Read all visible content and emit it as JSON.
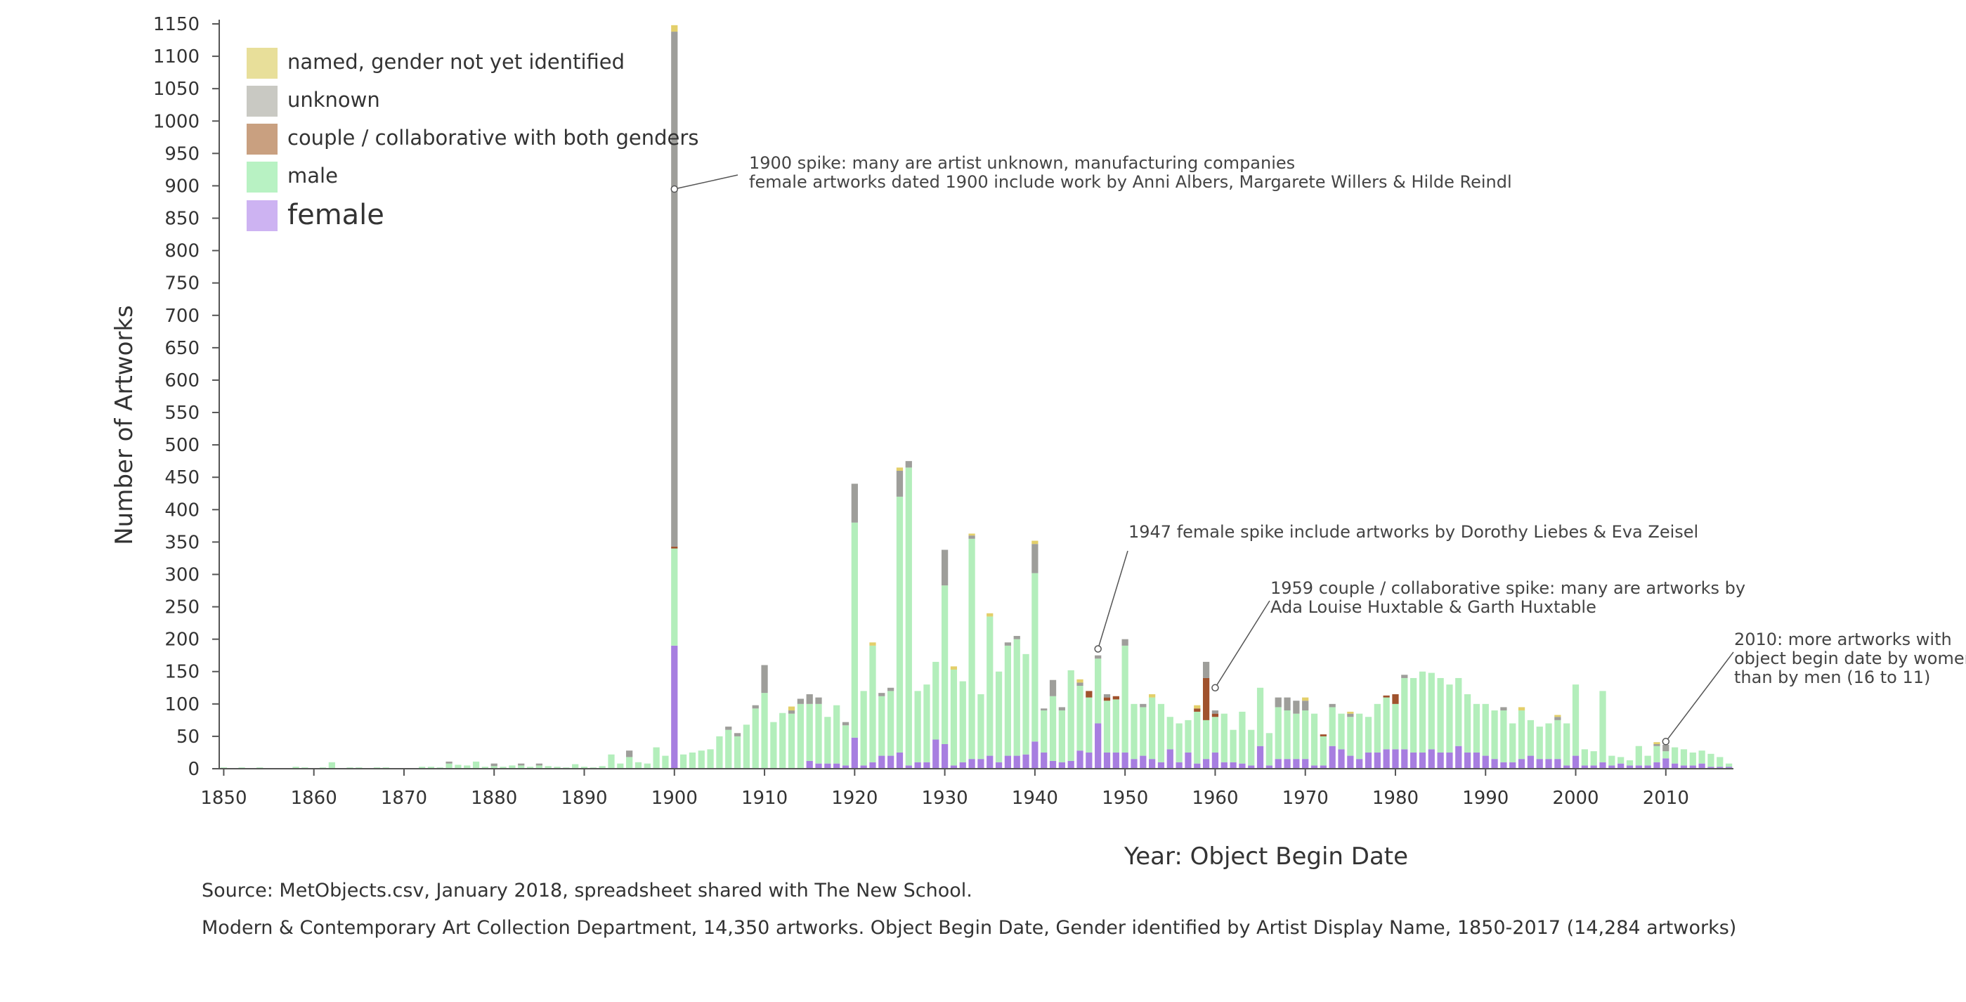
{
  "chart_data": {
    "type": "bar",
    "stacked": true,
    "xlabel": "Year: Object Begin Date",
    "ylabel": "Number of Artworks",
    "xlim": [
      1850,
      2017
    ],
    "ylim": [
      0,
      1150
    ],
    "x_ticks": [
      1850,
      1860,
      1870,
      1880,
      1890,
      1900,
      1910,
      1920,
      1930,
      1940,
      1950,
      1960,
      1970,
      1980,
      1990,
      2000,
      2010
    ],
    "y_ticks": [
      0,
      50,
      100,
      150,
      200,
      250,
      300,
      350,
      400,
      450,
      500,
      550,
      600,
      650,
      700,
      750,
      800,
      850,
      900,
      950,
      1000,
      1050,
      1100,
      1150
    ],
    "grid": false,
    "legend_position": "top-left",
    "legend": [
      {
        "key": "named",
        "label": "named, gender not yet identified",
        "color": "#e8df9a"
      },
      {
        "key": "unknown",
        "label": "unknown",
        "color": "#c9c9c3"
      },
      {
        "key": "couple",
        "label": "couple / collaborative with both genders",
        "color": "#c9a080"
      },
      {
        "key": "male",
        "label": "male",
        "color": "#b8f2c3"
      },
      {
        "key": "female",
        "label": "female",
        "color": "#cdb3f2"
      }
    ],
    "bar_colors": {
      "female": "#a77ee0",
      "male": "#b3eebb",
      "couple": "#a0522d",
      "unknown": "#9e9e9a",
      "named": "#e3cf6a"
    },
    "data": [
      [
        1850,
        0,
        2,
        0,
        0,
        0
      ],
      [
        1851,
        0,
        1,
        0,
        0,
        0
      ],
      [
        1852,
        0,
        2,
        0,
        0,
        0
      ],
      [
        1853,
        0,
        1,
        0,
        0,
        0
      ],
      [
        1854,
        0,
        2,
        0,
        0,
        0
      ],
      [
        1855,
        0,
        1,
        0,
        0,
        0
      ],
      [
        1856,
        0,
        1,
        0,
        0,
        0
      ],
      [
        1857,
        0,
        1,
        0,
        0,
        0
      ],
      [
        1858,
        0,
        3,
        0,
        0,
        0
      ],
      [
        1859,
        0,
        2,
        0,
        0,
        0
      ],
      [
        1860,
        0,
        1,
        0,
        0,
        0
      ],
      [
        1861,
        0,
        2,
        0,
        0,
        0
      ],
      [
        1862,
        0,
        10,
        0,
        0,
        0
      ],
      [
        1863,
        0,
        1,
        0,
        0,
        0
      ],
      [
        1864,
        0,
        2,
        0,
        0,
        0
      ],
      [
        1865,
        0,
        2,
        0,
        0,
        0
      ],
      [
        1866,
        0,
        1,
        0,
        0,
        0
      ],
      [
        1867,
        0,
        2,
        0,
        0,
        0
      ],
      [
        1868,
        0,
        2,
        0,
        0,
        0
      ],
      [
        1869,
        0,
        1,
        0,
        0,
        0
      ],
      [
        1870,
        0,
        1,
        0,
        0,
        0
      ],
      [
        1871,
        0,
        1,
        0,
        0,
        0
      ],
      [
        1872,
        0,
        3,
        0,
        0,
        0
      ],
      [
        1873,
        0,
        3,
        0,
        0,
        0
      ],
      [
        1874,
        0,
        2,
        0,
        0,
        0
      ],
      [
        1875,
        0,
        8,
        0,
        3,
        0
      ],
      [
        1876,
        0,
        6,
        0,
        0,
        0
      ],
      [
        1877,
        0,
        5,
        0,
        0,
        0
      ],
      [
        1878,
        0,
        11,
        0,
        0,
        0
      ],
      [
        1879,
        0,
        3,
        0,
        0,
        0
      ],
      [
        1880,
        0,
        4,
        0,
        4,
        0
      ],
      [
        1881,
        0,
        3,
        0,
        0,
        0
      ],
      [
        1882,
        0,
        5,
        0,
        0,
        0
      ],
      [
        1883,
        0,
        5,
        0,
        3,
        0
      ],
      [
        1884,
        0,
        3,
        0,
        0,
        0
      ],
      [
        1885,
        0,
        5,
        0,
        3,
        0
      ],
      [
        1886,
        0,
        4,
        0,
        0,
        0
      ],
      [
        1887,
        0,
        3,
        0,
        0,
        0
      ],
      [
        1888,
        0,
        2,
        0,
        0,
        0
      ],
      [
        1889,
        0,
        7,
        0,
        0,
        0
      ],
      [
        1890,
        0,
        3,
        0,
        0,
        0
      ],
      [
        1891,
        0,
        2,
        0,
        0,
        0
      ],
      [
        1892,
        0,
        4,
        0,
        0,
        0
      ],
      [
        1893,
        0,
        22,
        0,
        0,
        0
      ],
      [
        1894,
        0,
        8,
        0,
        0,
        0
      ],
      [
        1895,
        0,
        18,
        0,
        10,
        0
      ],
      [
        1896,
        0,
        10,
        0,
        0,
        0
      ],
      [
        1897,
        0,
        8,
        0,
        0,
        0
      ],
      [
        1898,
        0,
        33,
        0,
        0,
        0
      ],
      [
        1899,
        0,
        20,
        0,
        0,
        0
      ],
      [
        1900,
        190,
        150,
        3,
        795,
        10
      ],
      [
        1901,
        0,
        22,
        0,
        0,
        0
      ],
      [
        1902,
        0,
        25,
        0,
        0,
        0
      ],
      [
        1903,
        0,
        28,
        0,
        0,
        0
      ],
      [
        1904,
        0,
        30,
        0,
        0,
        0
      ],
      [
        1905,
        0,
        50,
        0,
        0,
        0
      ],
      [
        1906,
        0,
        60,
        0,
        5,
        0
      ],
      [
        1907,
        0,
        50,
        0,
        5,
        0
      ],
      [
        1908,
        0,
        68,
        0,
        0,
        0
      ],
      [
        1909,
        0,
        93,
        0,
        5,
        0
      ],
      [
        1910,
        0,
        117,
        0,
        43,
        0
      ],
      [
        1911,
        0,
        72,
        0,
        0,
        0
      ],
      [
        1912,
        0,
        86,
        0,
        0,
        0
      ],
      [
        1913,
        0,
        85,
        0,
        5,
        6
      ],
      [
        1914,
        0,
        100,
        0,
        8,
        0
      ],
      [
        1915,
        12,
        88,
        0,
        15,
        0
      ],
      [
        1916,
        8,
        92,
        0,
        10,
        0
      ],
      [
        1917,
        8,
        72,
        0,
        0,
        0
      ],
      [
        1918,
        8,
        90,
        0,
        0,
        0
      ],
      [
        1919,
        5,
        62,
        0,
        5,
        0
      ],
      [
        1920,
        48,
        332,
        0,
        60,
        0
      ],
      [
        1921,
        5,
        115,
        0,
        0,
        0
      ],
      [
        1922,
        10,
        180,
        0,
        0,
        5
      ],
      [
        1923,
        20,
        92,
        0,
        5,
        0
      ],
      [
        1924,
        20,
        100,
        0,
        5,
        0
      ],
      [
        1925,
        25,
        395,
        0,
        40,
        5
      ],
      [
        1926,
        5,
        460,
        0,
        10,
        0
      ],
      [
        1927,
        10,
        110,
        0,
        0,
        0
      ],
      [
        1928,
        10,
        120,
        0,
        0,
        0
      ],
      [
        1929,
        45,
        120,
        0,
        0,
        0
      ],
      [
        1930,
        38,
        245,
        0,
        55,
        0
      ],
      [
        1931,
        5,
        148,
        0,
        0,
        5
      ],
      [
        1932,
        10,
        125,
        0,
        0,
        0
      ],
      [
        1933,
        15,
        340,
        0,
        5,
        3
      ],
      [
        1934,
        15,
        100,
        0,
        0,
        0
      ],
      [
        1935,
        20,
        215,
        0,
        0,
        5
      ],
      [
        1936,
        10,
        140,
        0,
        0,
        0
      ],
      [
        1937,
        20,
        170,
        0,
        5,
        0
      ],
      [
        1938,
        20,
        180,
        0,
        5,
        0
      ],
      [
        1939,
        22,
        155,
        0,
        0,
        0
      ],
      [
        1940,
        42,
        260,
        0,
        45,
        5
      ],
      [
        1941,
        25,
        65,
        0,
        3,
        0
      ],
      [
        1942,
        12,
        100,
        0,
        25,
        0
      ],
      [
        1943,
        10,
        80,
        0,
        5,
        0
      ],
      [
        1944,
        12,
        140,
        0,
        0,
        0
      ],
      [
        1945,
        28,
        100,
        0,
        5,
        5
      ],
      [
        1946,
        25,
        85,
        10,
        0,
        0
      ],
      [
        1947,
        70,
        100,
        0,
        5,
        0
      ],
      [
        1948,
        25,
        80,
        5,
        5,
        0
      ],
      [
        1949,
        25,
        82,
        5,
        0,
        0
      ],
      [
        1950,
        25,
        165,
        0,
        10,
        0
      ],
      [
        1951,
        15,
        85,
        0,
        0,
        0
      ],
      [
        1952,
        20,
        75,
        0,
        5,
        0
      ],
      [
        1953,
        15,
        95,
        0,
        0,
        5
      ],
      [
        1954,
        10,
        90,
        0,
        0,
        0
      ],
      [
        1955,
        30,
        50,
        0,
        0,
        0
      ],
      [
        1956,
        10,
        60,
        0,
        0,
        0
      ],
      [
        1957,
        25,
        50,
        0,
        0,
        0
      ],
      [
        1958,
        8,
        80,
        5,
        0,
        5
      ],
      [
        1959,
        15,
        60,
        65,
        25,
        0
      ],
      [
        1960,
        25,
        55,
        5,
        5,
        0
      ],
      [
        1961,
        10,
        75,
        0,
        0,
        0
      ],
      [
        1962,
        10,
        50,
        0,
        0,
        0
      ],
      [
        1963,
        8,
        80,
        0,
        0,
        0
      ],
      [
        1964,
        5,
        55,
        0,
        0,
        0
      ],
      [
        1965,
        35,
        90,
        0,
        0,
        0
      ],
      [
        1966,
        5,
        50,
        0,
        0,
        0
      ],
      [
        1967,
        15,
        80,
        0,
        15,
        0
      ],
      [
        1968,
        15,
        75,
        0,
        20,
        0
      ],
      [
        1969,
        15,
        70,
        0,
        20,
        0
      ],
      [
        1970,
        15,
        75,
        0,
        15,
        5
      ],
      [
        1971,
        5,
        80,
        0,
        0,
        0
      ],
      [
        1972,
        5,
        45,
        3,
        0,
        0
      ],
      [
        1973,
        35,
        60,
        0,
        5,
        0
      ],
      [
        1974,
        30,
        55,
        0,
        0,
        0
      ],
      [
        1975,
        20,
        60,
        0,
        5,
        3
      ],
      [
        1976,
        15,
        70,
        0,
        0,
        0
      ],
      [
        1977,
        25,
        55,
        0,
        0,
        0
      ],
      [
        1978,
        25,
        75,
        0,
        0,
        0
      ],
      [
        1979,
        30,
        80,
        3,
        0,
        0
      ],
      [
        1980,
        30,
        70,
        15,
        0,
        0
      ],
      [
        1981,
        30,
        110,
        0,
        5,
        0
      ],
      [
        1982,
        25,
        115,
        0,
        0,
        0
      ],
      [
        1983,
        25,
        125,
        0,
        0,
        0
      ],
      [
        1984,
        30,
        118,
        0,
        0,
        0
      ],
      [
        1985,
        25,
        115,
        0,
        0,
        0
      ],
      [
        1986,
        25,
        105,
        0,
        0,
        0
      ],
      [
        1987,
        35,
        105,
        0,
        0,
        0
      ],
      [
        1988,
        25,
        90,
        0,
        0,
        0
      ],
      [
        1989,
        25,
        75,
        0,
        0,
        0
      ],
      [
        1990,
        20,
        80,
        0,
        0,
        0
      ],
      [
        1991,
        15,
        75,
        0,
        0,
        0
      ],
      [
        1992,
        10,
        80,
        0,
        5,
        0
      ],
      [
        1993,
        10,
        60,
        0,
        0,
        0
      ],
      [
        1994,
        15,
        75,
        0,
        0,
        5
      ],
      [
        1995,
        20,
        55,
        0,
        0,
        0
      ],
      [
        1996,
        15,
        50,
        0,
        0,
        0
      ],
      [
        1997,
        15,
        55,
        0,
        0,
        0
      ],
      [
        1998,
        15,
        60,
        0,
        5,
        3
      ],
      [
        1999,
        5,
        65,
        0,
        0,
        0
      ],
      [
        2000,
        20,
        110,
        0,
        0,
        0
      ],
      [
        2001,
        5,
        25,
        0,
        0,
        0
      ],
      [
        2002,
        5,
        22,
        0,
        0,
        0
      ],
      [
        2003,
        10,
        110,
        0,
        0,
        0
      ],
      [
        2004,
        5,
        15,
        0,
        0,
        0
      ],
      [
        2005,
        8,
        10,
        0,
        0,
        0
      ],
      [
        2006,
        5,
        8,
        0,
        0,
        0
      ],
      [
        2007,
        5,
        30,
        0,
        0,
        0
      ],
      [
        2008,
        5,
        15,
        0,
        0,
        0
      ],
      [
        2009,
        10,
        25,
        0,
        3,
        3
      ],
      [
        2010,
        16,
        11,
        0,
        10,
        0
      ],
      [
        2011,
        8,
        25,
        0,
        0,
        0
      ],
      [
        2012,
        5,
        25,
        0,
        0,
        0
      ],
      [
        2013,
        5,
        20,
        0,
        0,
        0
      ],
      [
        2014,
        8,
        20,
        0,
        0,
        0
      ],
      [
        2015,
        3,
        20,
        0,
        0,
        0
      ],
      [
        2016,
        3,
        15,
        0,
        0,
        0
      ],
      [
        2017,
        3,
        5,
        0,
        0,
        0
      ]
    ],
    "data_fields": [
      "year",
      "female",
      "male",
      "couple",
      "unknown",
      "named"
    ],
    "annotations": [
      {
        "year": 1900,
        "value": 895,
        "lines": [
          "1900 spike: many are artist unknown, manufacturing companies",
          "female artworks dated 1900 include work by Anni Albers, Margarete Willers & Hilde Reindl"
        ]
      },
      {
        "year": 1947,
        "value": 185,
        "lines": [
          "1947 female spike include artworks by Dorothy Liebes & Eva Zeisel"
        ]
      },
      {
        "year": 1960,
        "value": 125,
        "lines": [
          "1959 couple / collaborative spike: many are artworks by",
          "Ada Louise Huxtable & Garth Huxtable"
        ]
      },
      {
        "year": 2010,
        "value": 42,
        "lines": [
          "2010: more artworks with",
          "object begin date by women",
          "than by men (16 to 11)"
        ]
      }
    ]
  },
  "source": {
    "line1": "Source: MetObjects.csv, January 2018, spreadsheet shared with The New School.",
    "line2": "Modern & Contemporary Art Collection Department, 14,350 artworks. Object Begin Date, Gender identified by Artist Display Name, 1850-2017 (14,284 artworks)"
  }
}
